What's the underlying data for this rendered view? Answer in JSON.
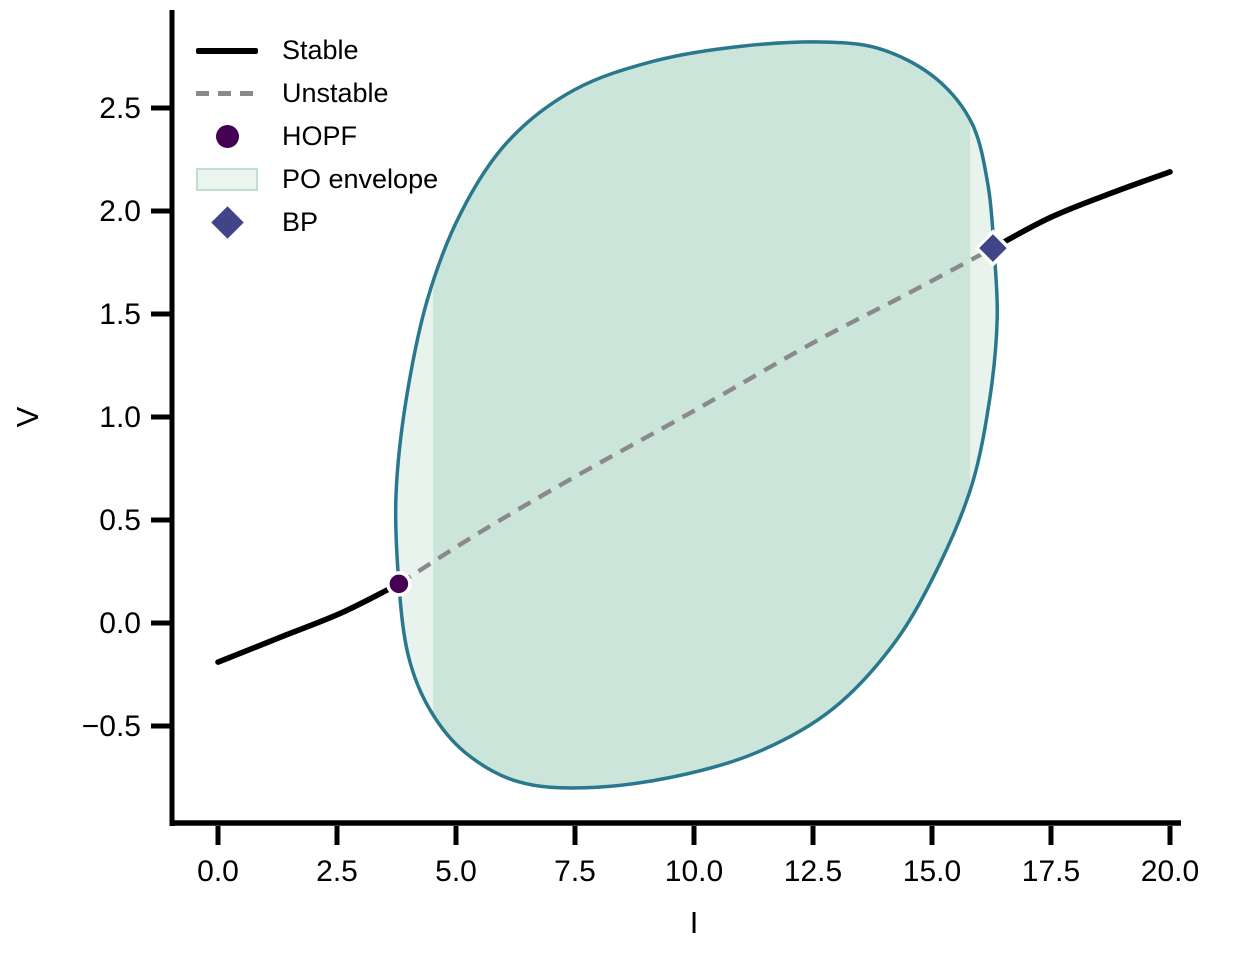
{
  "legend": {
    "items": [
      {
        "label": "Stable",
        "swatch": "solid-line"
      },
      {
        "label": "Unstable",
        "swatch": "dashed-line"
      },
      {
        "label": "HOPF",
        "swatch": "circle"
      },
      {
        "label": "PO envelope",
        "swatch": "rect"
      },
      {
        "label": "BP",
        "swatch": "diamond"
      }
    ]
  },
  "chart_data": {
    "type": "line",
    "title": "",
    "xlabel": "I",
    "ylabel": "V",
    "xlim": [
      -1.0,
      20.3
    ],
    "ylim": [
      -0.95,
      2.95
    ],
    "grid": false,
    "legend_position": "top-left",
    "xticks": {
      "values": [
        0.0,
        2.5,
        5.0,
        7.5,
        10.0,
        12.5,
        15.0,
        17.5,
        20.0
      ],
      "labels": [
        "0.0",
        "2.5",
        "5.0",
        "7.5",
        "10.0",
        "12.5",
        "15.0",
        "17.5",
        "20.0"
      ]
    },
    "yticks": {
      "values": [
        -0.5,
        0.0,
        0.5,
        1.0,
        1.5,
        2.0,
        2.5
      ],
      "labels": [
        "−0.5",
        "0.0",
        "0.5",
        "1.0",
        "1.5",
        "2.0",
        "2.5"
      ]
    },
    "colors": {
      "stable": "#000000",
      "unstable": "#8a8a8a",
      "hopf": "#440154",
      "bp": "#414487",
      "envelope_stroke": "#2a788e",
      "envelope_fill": "#cbe5da",
      "envelope_cap_fill": "#e7f3ec"
    },
    "series": [
      {
        "name": "Stable (lower branch)",
        "style": "solid",
        "points": [
          [
            0.0,
            -0.19
          ],
          [
            1.3,
            -0.07
          ],
          [
            2.6,
            0.05
          ],
          [
            3.8,
            0.19
          ]
        ]
      },
      {
        "name": "Unstable",
        "style": "dashed",
        "points": [
          [
            3.8,
            0.19
          ],
          [
            5.5,
            0.44
          ],
          [
            7.5,
            0.71
          ],
          [
            10.0,
            1.03
          ],
          [
            12.5,
            1.36
          ],
          [
            14.5,
            1.6
          ],
          [
            16.28,
            1.82
          ]
        ]
      },
      {
        "name": "Stable (upper branch)",
        "style": "solid",
        "points": [
          [
            16.28,
            1.82
          ],
          [
            17.5,
            1.97
          ],
          [
            18.8,
            2.09
          ],
          [
            20.0,
            2.19
          ]
        ]
      }
    ],
    "markers": [
      {
        "name": "HOPF",
        "shape": "circle",
        "x": 3.8,
        "y": 0.19
      },
      {
        "name": "BP",
        "shape": "diamond",
        "x": 16.28,
        "y": 1.82
      }
    ],
    "po_envelope": {
      "band_I": [
        4.52,
        15.8
      ],
      "boundary": [
        [
          3.8,
          0.19
        ],
        [
          3.74,
          0.62
        ],
        [
          3.95,
          1.08
        ],
        [
          4.4,
          1.57
        ],
        [
          5.1,
          1.99
        ],
        [
          6.1,
          2.34
        ],
        [
          7.5,
          2.59
        ],
        [
          9.2,
          2.73
        ],
        [
          11.0,
          2.8
        ],
        [
          12.8,
          2.82
        ],
        [
          14.0,
          2.78
        ],
        [
          15.1,
          2.64
        ],
        [
          15.85,
          2.42
        ],
        [
          16.18,
          2.12
        ],
        [
          16.3,
          1.82
        ],
        [
          16.37,
          1.48
        ],
        [
          16.22,
          1.1
        ],
        [
          15.85,
          0.68
        ],
        [
          15.15,
          0.28
        ],
        [
          14.2,
          -0.1
        ],
        [
          12.9,
          -0.42
        ],
        [
          11.3,
          -0.63
        ],
        [
          9.5,
          -0.75
        ],
        [
          7.7,
          -0.8
        ],
        [
          6.3,
          -0.77
        ],
        [
          5.2,
          -0.63
        ],
        [
          4.45,
          -0.42
        ],
        [
          4.0,
          -0.16
        ]
      ]
    }
  }
}
